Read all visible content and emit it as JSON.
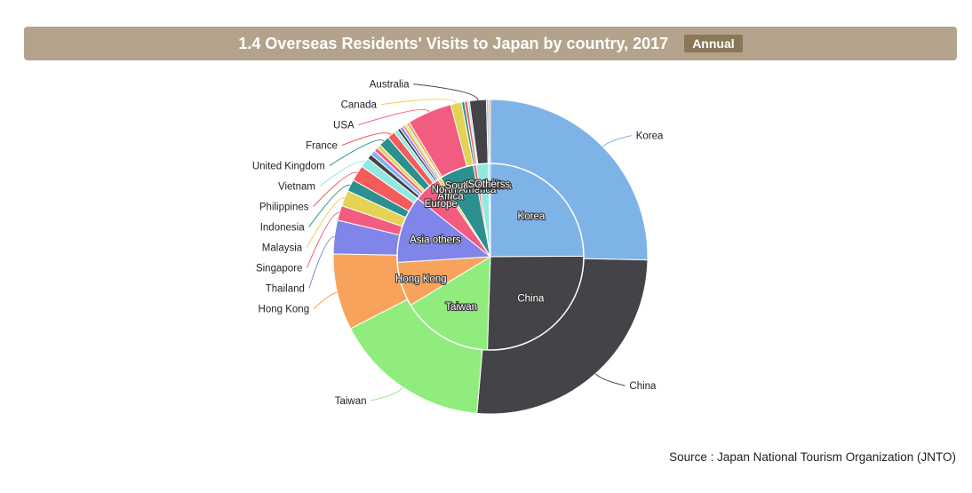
{
  "header": {
    "title": "1.4 Overseas Residents' Visits to Japan by country, 2017",
    "badge": "Annual"
  },
  "source": "Source : Japan National Tourism Organization (JNTO)",
  "chart_data": {
    "type": "pie",
    "title": "1.4 Overseas Residents' Visits to Japan by country, 2017",
    "outer_ring": [
      {
        "name": "Korea",
        "value": 24.9,
        "color": "#7eb3e8"
      },
      {
        "name": "China",
        "value": 25.6,
        "color": "#434348"
      },
      {
        "name": "Taiwan",
        "value": 15.8,
        "color": "#90ed7d"
      },
      {
        "name": "Hong Kong",
        "value": 7.7,
        "color": "#f7a35c"
      },
      {
        "name": "Thailand",
        "value": 3.4,
        "color": "#8085e9"
      },
      {
        "name": "Singapore",
        "value": 1.5,
        "color": "#f15c80"
      },
      {
        "name": "Malaysia",
        "value": 1.6,
        "color": "#e4d354"
      },
      {
        "name": "Indonesia",
        "value": 1.2,
        "color": "#2b908f"
      },
      {
        "name": "Philippines",
        "value": 1.6,
        "color": "#f45b5b"
      },
      {
        "name": "Vietnam",
        "value": 1.0,
        "color": "#91e8e1"
      },
      {
        "name": "",
        "value": 0.5,
        "color": "#434348"
      },
      {
        "name": "",
        "value": 0.5,
        "color": "#7cb5ec"
      },
      {
        "name": "",
        "value": 0.4,
        "color": "#f15c80"
      },
      {
        "name": "",
        "value": 0.4,
        "color": "#e4d354"
      },
      {
        "name": "United Kingdom",
        "value": 1.1,
        "color": "#2b908f"
      },
      {
        "name": "France",
        "value": 0.8,
        "color": "#f45b5b"
      },
      {
        "name": "",
        "value": 0.4,
        "color": "#91e8e1"
      },
      {
        "name": "",
        "value": 0.3,
        "color": "#434348"
      },
      {
        "name": "",
        "value": 0.3,
        "color": "#8085e9"
      },
      {
        "name": "",
        "value": 0.3,
        "color": "#f7a35c"
      },
      {
        "name": "",
        "value": 0.2,
        "color": "#90ed7d"
      },
      {
        "name": "",
        "value": 0.3,
        "color": "#f7a35c"
      },
      {
        "name": "USA",
        "value": 4.5,
        "color": "#f15c80"
      },
      {
        "name": "Canada",
        "value": 1.1,
        "color": "#e4d354"
      },
      {
        "name": "",
        "value": 0.3,
        "color": "#2b908f"
      },
      {
        "name": "",
        "value": 0.3,
        "color": "#f45b5b"
      },
      {
        "name": "",
        "value": 0.2,
        "color": "#91e8e1"
      },
      {
        "name": "Australia",
        "value": 1.7,
        "color": "#434348"
      },
      {
        "name": "",
        "value": 0.2,
        "color": "#7cb5ec"
      },
      {
        "name": "",
        "value": 0.2,
        "color": "#f7a35c"
      }
    ],
    "inner_ring": [
      {
        "name": "Korea",
        "value": 24.9,
        "color": "#7eb3e8"
      },
      {
        "name": "China",
        "value": 25.6,
        "color": "#434348"
      },
      {
        "name": "Taiwan",
        "value": 15.8,
        "color": "#90ed7d"
      },
      {
        "name": "Hong Kong",
        "value": 7.7,
        "color": "#f7a35c"
      },
      {
        "name": "Asia others",
        "value": 11.7,
        "color": "#8085e9"
      },
      {
        "name": "Europe",
        "value": 4.7,
        "color": "#f15c80"
      },
      {
        "name": "Africa",
        "value": 0.6,
        "color": "#e4d354"
      },
      {
        "name": "North America",
        "value": 6.0,
        "color": "#2b908f"
      },
      {
        "name": "South America",
        "value": 0.5,
        "color": "#f45b5b"
      },
      {
        "name": "Oceania",
        "value": 2.1,
        "color": "#91e8e1"
      },
      {
        "name": "Stateless",
        "value": 0.05,
        "color": "#434348"
      },
      {
        "name": "Others",
        "value": 0.3,
        "color": "#7cb5ec"
      }
    ]
  }
}
